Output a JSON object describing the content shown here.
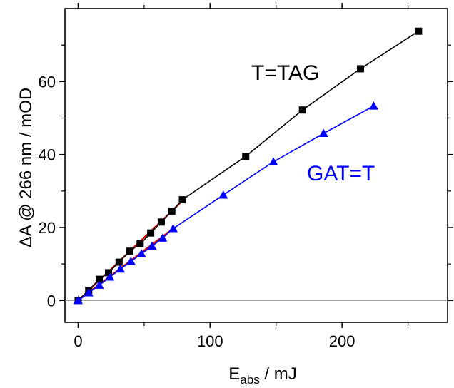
{
  "chart_data": {
    "type": "line",
    "xlim": [
      -10,
      280
    ],
    "ylim": [
      -6,
      80
    ],
    "x_ticks": [
      0,
      100,
      200
    ],
    "y_ticks": [
      0,
      20,
      40,
      60
    ],
    "xlabel_main": "E",
    "xlabel_sub": "abs",
    "xlabel_unit": " / mJ",
    "ylabel": "ΔA @ 266 nm / mOD",
    "grid": false,
    "zero_line": true,
    "series": [
      {
        "name": "T=TAG",
        "color": "#000000",
        "marker": "square",
        "x": [
          0,
          8,
          16,
          23,
          31,
          39,
          47,
          55,
          63,
          71,
          79,
          127,
          170,
          214,
          258
        ],
        "y": [
          0,
          2.8,
          5.8,
          7.6,
          10.5,
          13.5,
          15.5,
          18.5,
          21.5,
          24.5,
          27.6,
          39.5,
          52.2,
          63.5,
          73.8
        ]
      },
      {
        "name": "GAT=T",
        "color": "#0000ff",
        "marker": "triangle",
        "x": [
          0,
          8,
          16,
          24,
          32,
          40,
          48,
          56,
          64,
          72,
          110,
          148,
          186,
          224
        ],
        "y": [
          0,
          2.1,
          4.2,
          6.4,
          8.6,
          10.7,
          12.8,
          14.9,
          17.1,
          19.7,
          28.9,
          38.0,
          45.8,
          53.3
        ]
      }
    ],
    "fit_lines": [
      {
        "color": "#cc0000",
        "x": [
          0,
          80
        ],
        "y": [
          0,
          27.6
        ]
      },
      {
        "color": "#cc0000",
        "x": [
          0,
          70
        ],
        "y": [
          0,
          19.2
        ]
      }
    ]
  }
}
